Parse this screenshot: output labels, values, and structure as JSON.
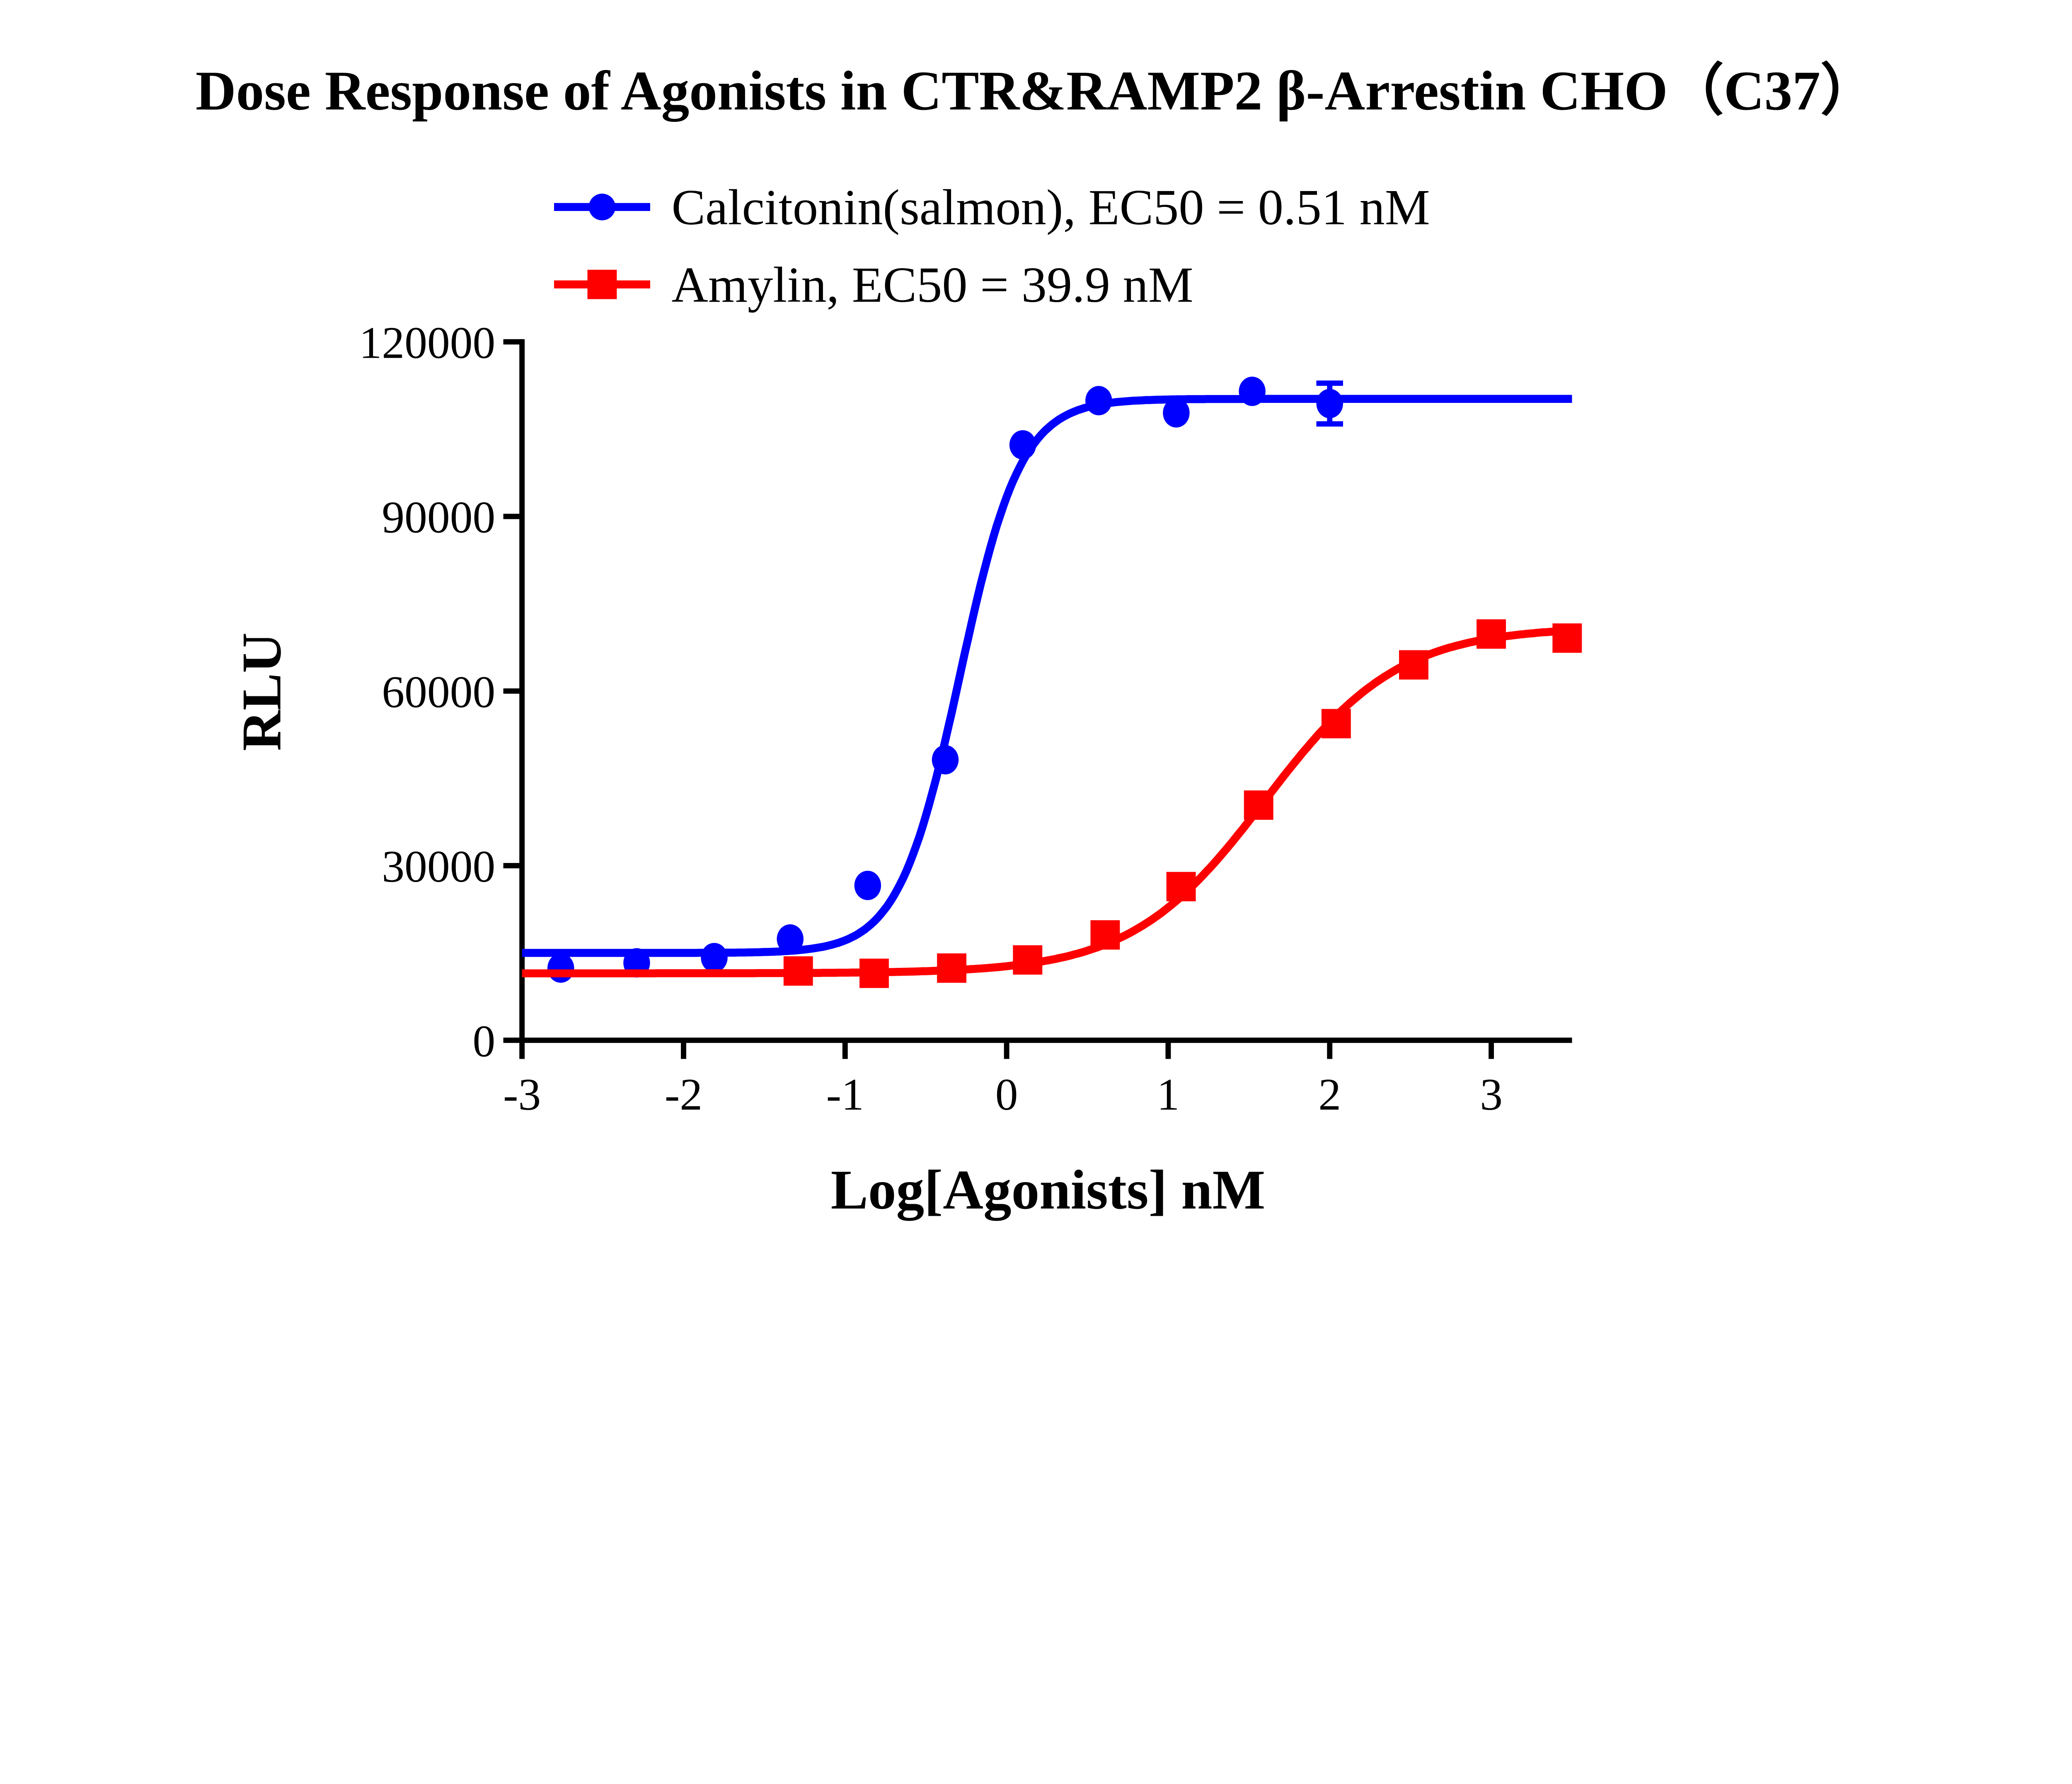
{
  "chart_data": {
    "type": "scatter",
    "title": "Dose Response of Agonists in CTR&RAMP2 β-Arrestin CHO（C37）",
    "xlabel": "Log[Agonists] nM",
    "ylabel": "RLU",
    "xlim": [
      -3,
      3.5
    ],
    "ylim": [
      0,
      120000
    ],
    "xticks": [
      "-3",
      "-2",
      "-1",
      "0",
      "1",
      "2",
      "3"
    ],
    "yticks": [
      "0",
      "30000",
      "60000",
      "90000",
      "120000"
    ],
    "grid": false,
    "legend_position": "top",
    "series": [
      {
        "name": "Calcitonin(salmon), EC50 = 0.51 nM",
        "color": "#0000ff",
        "marker": "circle",
        "x": [
          -2.76,
          -2.29,
          -1.81,
          -1.34,
          -0.86,
          -0.38,
          0.1,
          0.57,
          1.05,
          1.52,
          2.0
        ],
        "y": [
          12400,
          13300,
          14200,
          17400,
          26600,
          48200,
          102300,
          109900,
          107800,
          111500,
          109400
        ],
        "error": [
          0,
          0,
          0,
          0,
          0,
          0,
          0,
          0,
          0,
          0,
          3500
        ],
        "fit": {
          "bottom": 15000,
          "top": 110200,
          "logEC50": -0.29,
          "hill": 2.3
        }
      },
      {
        "name": "Amylin, EC50 = 39.9 nM",
        "color": "#ff0000",
        "marker": "square",
        "x": [
          -1.29,
          -0.82,
          -0.34,
          0.13,
          0.61,
          1.08,
          1.56,
          2.04,
          2.52,
          3.0,
          3.47
        ],
        "y": [
          11900,
          11500,
          12400,
          13800,
          18100,
          26400,
          40400,
          54400,
          64500,
          69800,
          69100
        ],
        "error": [
          0,
          0,
          0,
          0,
          0,
          0,
          0,
          0,
          0,
          0,
          0
        ],
        "fit": {
          "bottom": 11500,
          "top": 71000,
          "logEC50": 1.6,
          "hill": 1.05
        }
      }
    ]
  }
}
